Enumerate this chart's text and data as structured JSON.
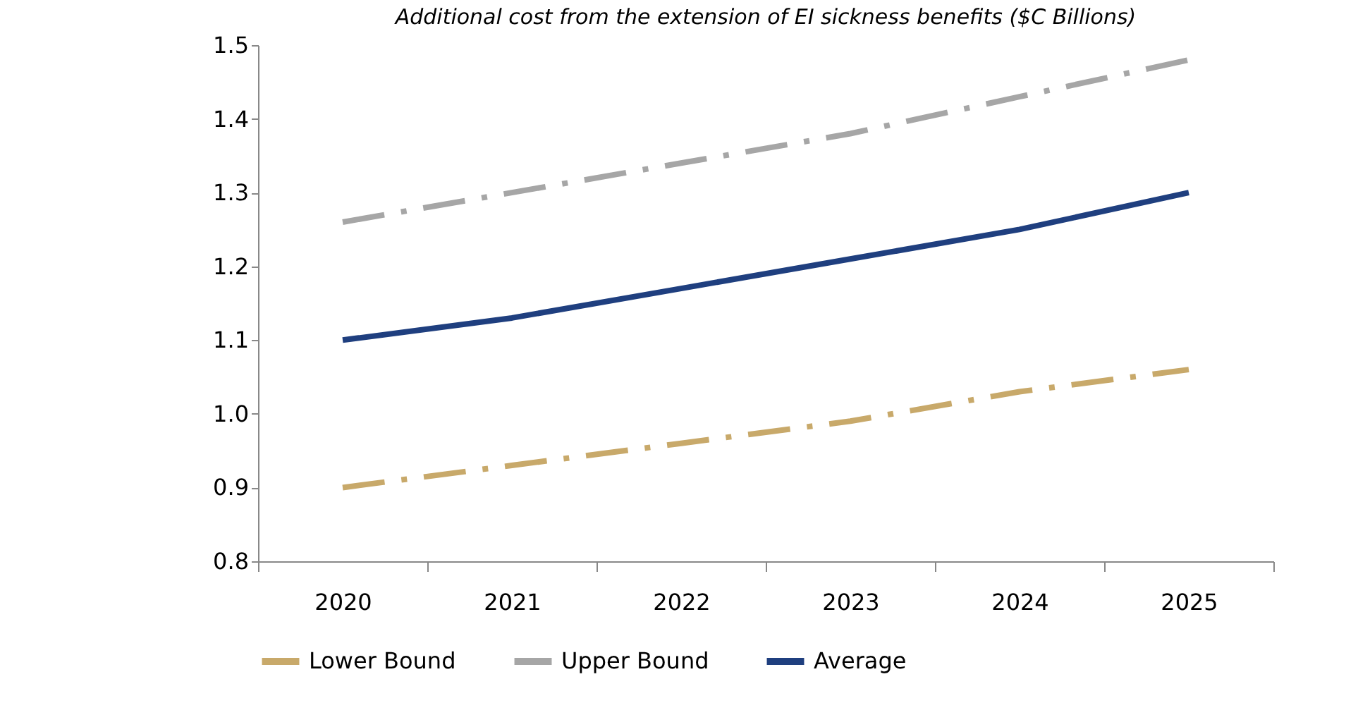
{
  "chart_data": {
    "type": "line",
    "title": "Additional cost from the extension of EI sickness benefits ($C Billions)",
    "categories": [
      "2020",
      "2021",
      "2022",
      "2023",
      "2024",
      "2025"
    ],
    "series": [
      {
        "name": "Lower Bound",
        "color": "#c8a96a",
        "line_style": "dashed",
        "values": [
          0.9,
          0.93,
          0.96,
          0.99,
          1.03,
          1.06
        ]
      },
      {
        "name": "Upper Bound",
        "color": "#a6a6a6",
        "line_style": "dashed",
        "values": [
          1.26,
          1.3,
          1.34,
          1.38,
          1.43,
          1.48
        ]
      },
      {
        "name": "Average",
        "color": "#1f3f7f",
        "line_style": "solid",
        "values": [
          1.1,
          1.13,
          1.17,
          1.21,
          1.25,
          1.3
        ]
      }
    ],
    "ylim": [
      0.8,
      1.5
    ],
    "yticks": [
      0.8,
      0.9,
      {
        "value": 1.0,
        "label": "1.0"
      },
      1.1,
      1.2,
      1.3,
      1.4,
      1.5
    ],
    "grid": false,
    "legend": "bottom",
    "marker": "none"
  }
}
